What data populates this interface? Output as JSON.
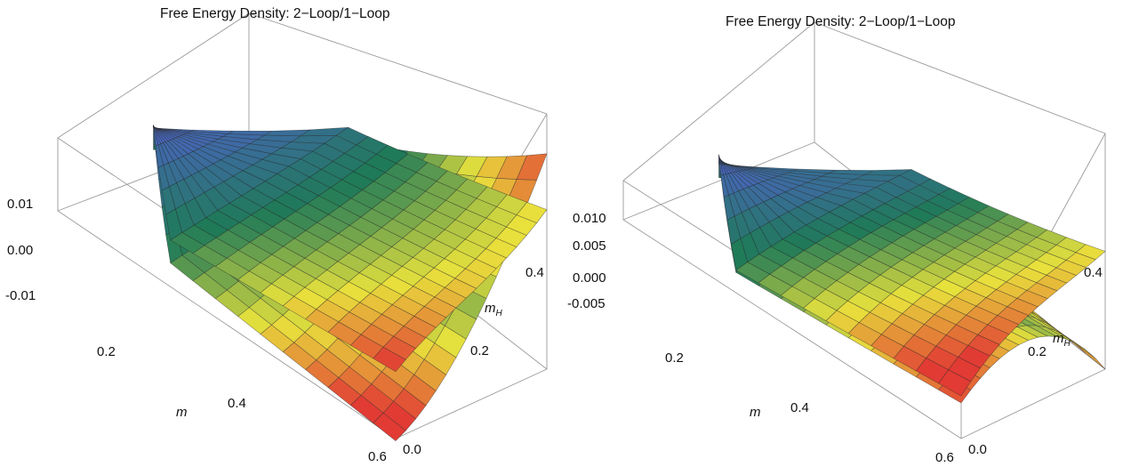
{
  "chart_data": [
    {
      "type": "surface3d",
      "title": "Free Energy Density: 2−Loop/1−Loop",
      "xlabel": "m",
      "ylabel_base": "m",
      "ylabel_sub": "H",
      "zlabel": "",
      "xlim": [
        0.05,
        0.6
      ],
      "ylim": [
        0.0,
        0.5
      ],
      "zlim": [
        -0.016,
        0.016
      ],
      "x_ticks": [
        "0.2",
        "0.4",
        "0.6"
      ],
      "y_ticks": [
        "0.0",
        "0.2",
        "0.4"
      ],
      "z_ticks": [
        "0.01",
        "0.00",
        "-0.01"
      ],
      "colormap": [
        "#4a64c2",
        "#1f7a58",
        "#e8e23c",
        "#e13b34"
      ],
      "series": [
        {
          "corners": {
            "m_min_mH_max": -0.001,
            "m_max_mH_max": 0.004,
            "m_max_mH_min": 0.013,
            "m_min_mH_min": 0.0
          }
        },
        {
          "corners": {
            "m_min_mH_max": -0.008,
            "m_max_mH_max": 0.011,
            "m_max_mH_min": -0.017,
            "m_min_mH_min": 0.0
          }
        }
      ]
    },
    {
      "type": "surface3d",
      "title": "Free Energy Density: 2−Loop/1−Loop",
      "xlabel": "m",
      "ylabel_base": "m",
      "ylabel_sub": "H",
      "zlabel": "",
      "xlim": [
        0.05,
        0.6
      ],
      "ylim": [
        0.0,
        0.5
      ],
      "zlim": [
        -0.008,
        0.016
      ],
      "x_ticks": [
        "0.2",
        "0.4",
        "0.6"
      ],
      "y_ticks": [
        "0.0",
        "0.2",
        "0.4"
      ],
      "z_ticks": [
        "0.010",
        "0.005",
        "0.000",
        "-0.005"
      ],
      "colormap": [
        "#4a64c2",
        "#1f7a58",
        "#e8e23c",
        "#e13b34"
      ],
      "series": [
        {
          "corners": {
            "m_min_mH_max": -0.003,
            "m_max_mH_max": 0.004,
            "m_max_mH_min": 0.016,
            "m_min_mH_min": 0.0
          }
        },
        {
          "corners": {
            "m_min_mH_max": -0.007,
            "m_max_mH_max": -0.008,
            "m_max_mH_min": 0.012,
            "m_min_mH_min": 0.0
          }
        }
      ]
    }
  ]
}
